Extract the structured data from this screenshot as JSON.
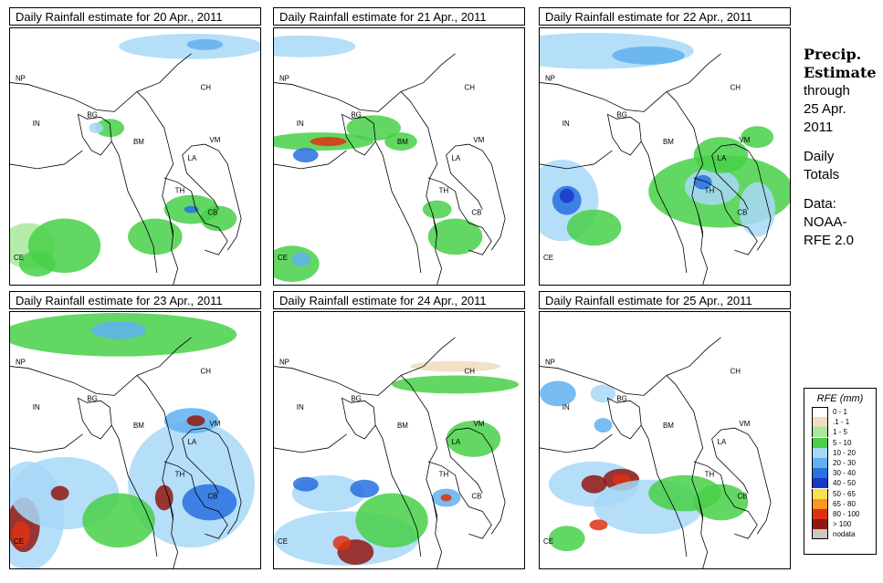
{
  "panels": [
    {
      "title": "Daily Rainfall estimate for  20 Apr., 2011"
    },
    {
      "title": "Daily Rainfall estimate for  21 Apr., 2011"
    },
    {
      "title": "Daily Rainfall estimate for  22 Apr., 2011"
    },
    {
      "title": "Daily Rainfall estimate for  23 Apr., 2011"
    },
    {
      "title": "Daily Rainfall estimate for  24 Apr., 2011"
    },
    {
      "title": "Daily Rainfall estimate for  25 Apr., 2011"
    }
  ],
  "country_labels": {
    "np": "NP",
    "ch": "CH",
    "in": "IN",
    "bg": "BG",
    "bm": "BM",
    "vm": "VM",
    "la": "LA",
    "th": "TH",
    "cb": "CB",
    "ce": "CE"
  },
  "side": {
    "line1": "Precip.",
    "line2": "Estimate",
    "line3": "through",
    "line4": "25 Apr.",
    "line5": "2011",
    "line6": "Daily",
    "line7": "Totals",
    "line8": "Data:",
    "line9": "NOAA-",
    "line10": "RFE 2.0"
  },
  "legend": {
    "title": "RFE (mm)",
    "items": [
      {
        "label": "0 - 1",
        "color": "#ffffff"
      },
      {
        "label": ".1 - 1",
        "color": "#f0dcc0"
      },
      {
        "label": "1 - 5",
        "color": "#a8e89c"
      },
      {
        "label": "5 - 10",
        "color": "#48d048"
      },
      {
        "label": "10 - 20",
        "color": "#a8d8f8"
      },
      {
        "label": "20 - 30",
        "color": "#60b0f0"
      },
      {
        "label": "30 - 40",
        "color": "#2870e0"
      },
      {
        "label": "40 - 50",
        "color": "#1838c8"
      },
      {
        "label": "50 - 65",
        "color": "#f8e050"
      },
      {
        "label": "65 - 80",
        "color": "#f89820"
      },
      {
        "label": "80 - 100",
        "color": "#e03010"
      },
      {
        "label": "> 100",
        "color": "#901810"
      },
      {
        "label": "nodata",
        "color": "#c8c8c0"
      }
    ]
  }
}
